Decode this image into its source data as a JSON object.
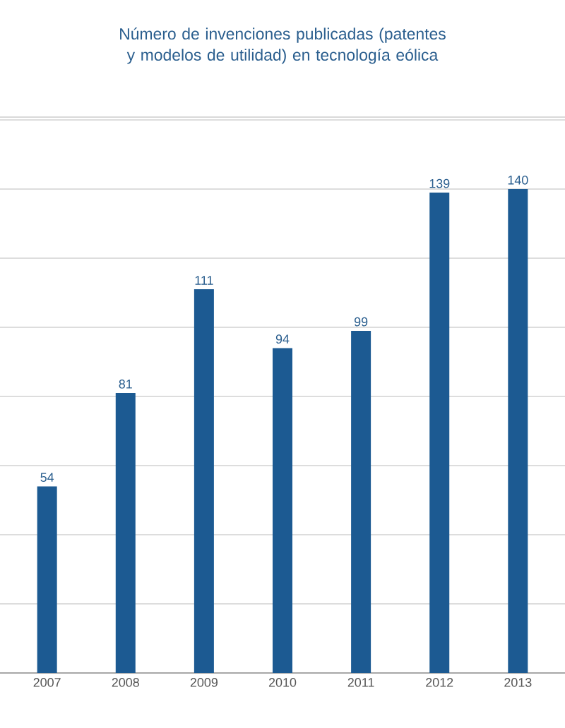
{
  "chart_data": {
    "type": "bar",
    "title": "Número de invenciones publicadas (patentes y modelos de utilidad) en tecnología eólica",
    "categories": [
      "2007",
      "2008",
      "2009",
      "2010",
      "2011",
      "2012",
      "2013"
    ],
    "values": [
      54,
      81,
      111,
      94,
      99,
      139,
      140
    ],
    "color": "#1c5a92",
    "ylim": [
      0,
      160
    ],
    "tick_labels": "x",
    "grid": "y",
    "data_labels": true
  }
}
